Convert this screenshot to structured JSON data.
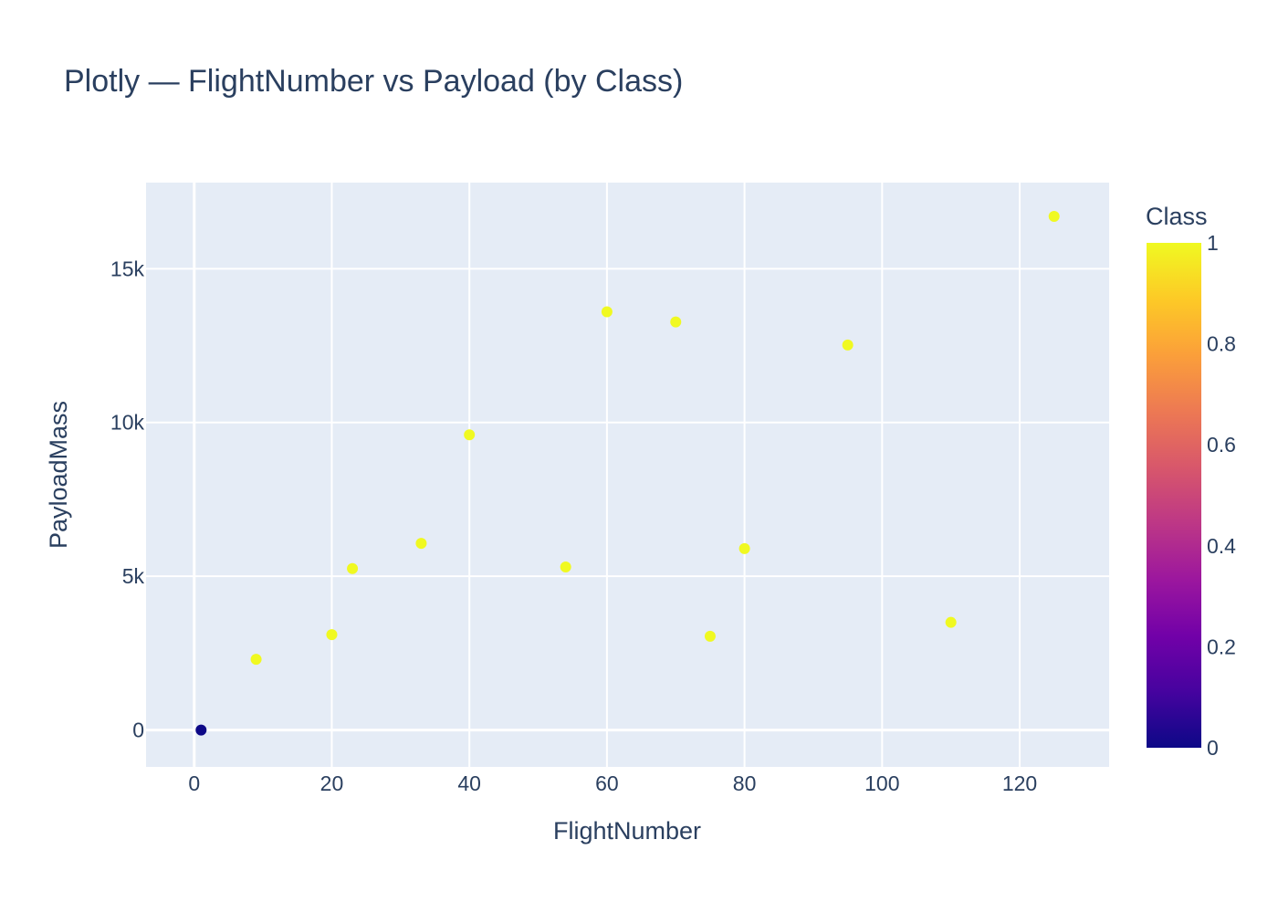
{
  "chart_data": {
    "type": "scatter",
    "title": "Plotly — FlightNumber vs Payload (by Class)",
    "xlabel": "FlightNumber",
    "ylabel": "PayloadMass",
    "xlim": [
      -7,
      133
    ],
    "ylim": [
      -1200,
      17800
    ],
    "xticks": [
      0,
      20,
      40,
      60,
      80,
      100,
      120
    ],
    "xtick_labels": [
      "0",
      "20",
      "40",
      "60",
      "80",
      "100",
      "120"
    ],
    "yticks": [
      0,
      5000,
      10000,
      15000
    ],
    "ytick_labels": [
      "0",
      "5k",
      "10k",
      "15k"
    ],
    "grid": true,
    "colorbar": {
      "title": "Class",
      "range": [
        0,
        1
      ],
      "ticks": [
        0,
        0.2,
        0.4,
        0.6,
        0.8,
        1
      ],
      "tick_labels": [
        "0",
        "0.2",
        "0.4",
        "0.6",
        "0.8",
        "1"
      ],
      "colorscale": [
        "#0d0887",
        "#46039f",
        "#7201a8",
        "#9c179e",
        "#bd3786",
        "#d8576b",
        "#ed7953",
        "#fb9f3a",
        "#fdca26",
        "#f0f921"
      ]
    },
    "points": [
      {
        "x": 1,
        "y": 0,
        "class": 0
      },
      {
        "x": 9,
        "y": 2300,
        "class": 1
      },
      {
        "x": 20,
        "y": 3100,
        "class": 1
      },
      {
        "x": 23,
        "y": 5250,
        "class": 1
      },
      {
        "x": 33,
        "y": 6070,
        "class": 1
      },
      {
        "x": 40,
        "y": 9600,
        "class": 1
      },
      {
        "x": 54,
        "y": 5300,
        "class": 1
      },
      {
        "x": 60,
        "y": 13600,
        "class": 1
      },
      {
        "x": 70,
        "y": 13270,
        "class": 1
      },
      {
        "x": 75,
        "y": 3050,
        "class": 1
      },
      {
        "x": 80,
        "y": 5900,
        "class": 1
      },
      {
        "x": 95,
        "y": 12520,
        "class": 1
      },
      {
        "x": 110,
        "y": 3500,
        "class": 1
      },
      {
        "x": 125,
        "y": 16700,
        "class": 1
      }
    ]
  }
}
